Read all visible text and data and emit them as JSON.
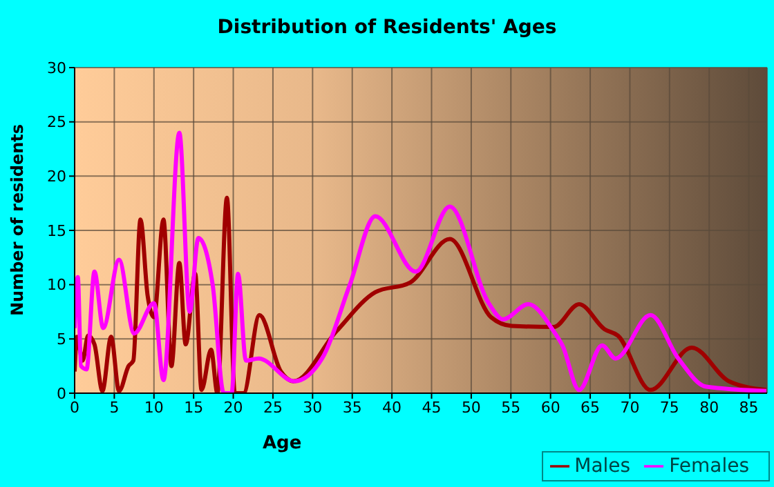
{
  "chart_data": {
    "type": "line",
    "title": "Distribution of Residents' Ages",
    "xlabel": "Age",
    "ylabel": "Number of residents",
    "xlim": [
      0,
      87.3
    ],
    "xticks": [
      0,
      5,
      10,
      15,
      20,
      25,
      30,
      35,
      40,
      45,
      50,
      55,
      60,
      65,
      70,
      75,
      80,
      85
    ],
    "ylim": [
      0,
      30
    ],
    "yticks": [
      0,
      5,
      10,
      15,
      20,
      25,
      30
    ],
    "grid": true,
    "legend": "bottom right",
    "marker": "none",
    "line_style": "solid",
    "series": [
      {
        "name": "Males",
        "color": "#a00000",
        "x": [
          0,
          0.3,
          1,
          1.7,
          2.5,
          3.5,
          4.6,
          5.6,
          6.8,
          7.4,
          8.3,
          9.2,
          10,
          11.2,
          12.2,
          13.2,
          14,
          15.2,
          16,
          17.2,
          18,
          19.2,
          20.2,
          21.3,
          23.3,
          26,
          27.6,
          33,
          37.9,
          42.3,
          47.3,
          52.5,
          55.1,
          60.4,
          63.6,
          66.8,
          68.5,
          72.6,
          77.8,
          82.5,
          87.2
        ],
        "values": [
          2,
          5.2,
          3,
          5.3,
          4.5,
          0.2,
          5.2,
          0.2,
          2.5,
          3,
          16,
          9,
          7,
          16,
          2.5,
          12,
          4.5,
          11,
          0.3,
          4,
          0,
          18,
          0,
          0,
          7.2,
          2,
          1.1,
          5.7,
          9.3,
          10.2,
          14.2,
          7,
          6.2,
          6.1,
          8.2,
          5.9,
          5.3,
          0.3,
          4.2,
          1.1,
          0.3
        ]
      },
      {
        "name": "Females",
        "color": "#ff00ff",
        "x": [
          0,
          0.4,
          0.8,
          1.5,
          2.5,
          3.6,
          5.6,
          7.5,
          10,
          11.2,
          13.2,
          14.5,
          15.6,
          17.4,
          18.8,
          19.8,
          20.6,
          21.6,
          23.2,
          27.7,
          31.2,
          34.7,
          37.9,
          43,
          47.3,
          52.2,
          54,
          57.2,
          60.4,
          61.5,
          63.6,
          66.5,
          68.2,
          72.6,
          76.1,
          79.6,
          87.2
        ],
        "values": [
          6,
          10.7,
          2.5,
          2.2,
          11.2,
          6,
          12.3,
          5.5,
          8.3,
          1.2,
          24,
          7.5,
          14.3,
          10,
          0,
          0,
          11,
          3,
          3.2,
          1.1,
          3.2,
          10,
          16.3,
          11.2,
          17.2,
          8.3,
          6.8,
          8.2,
          5.7,
          4.4,
          0.3,
          4.4,
          3.2,
          7.2,
          3.2,
          0.6,
          0.2
        ]
      }
    ]
  }
}
